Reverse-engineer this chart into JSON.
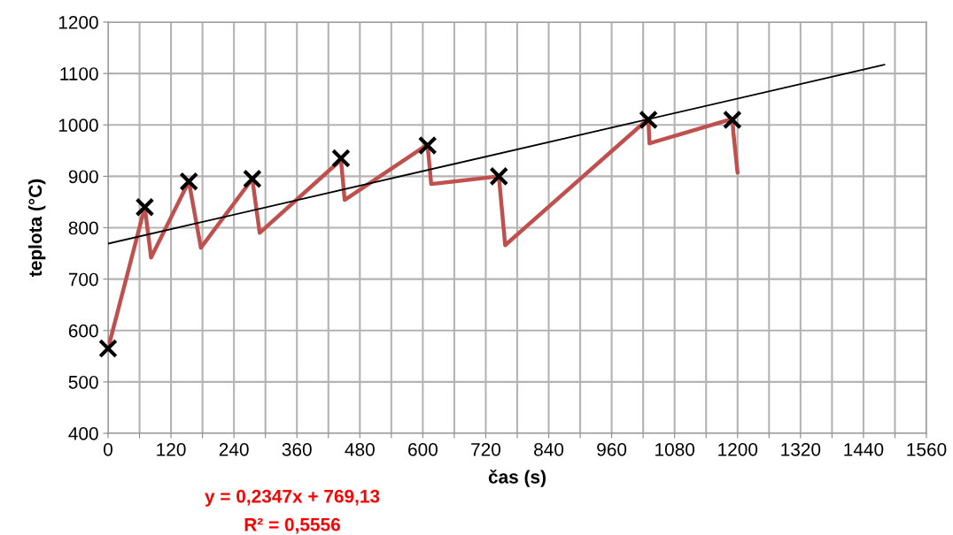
{
  "chart_data": {
    "type": "line",
    "xlabel": "čas (s)",
    "ylabel": "teplota (°C)",
    "xlim": [
      0,
      1560
    ],
    "ylim": [
      400,
      1200
    ],
    "xticks": [
      0,
      {
        "value": 60,
        "label": null
      },
      120,
      {
        "value": 180,
        "label": null
      },
      240,
      {
        "value": 300,
        "label": null
      },
      360,
      {
        "value": 420,
        "label": null
      },
      480,
      {
        "value": 540,
        "label": null
      },
      600,
      {
        "value": 660,
        "label": null
      },
      720,
      {
        "value": 780,
        "label": null
      },
      840,
      {
        "value": 900,
        "label": null
      },
      960,
      {
        "value": 1020,
        "label": null
      },
      1080,
      {
        "value": 1140,
        "label": null
      },
      1200,
      {
        "value": 1260,
        "label": null
      },
      1320,
      {
        "value": 1380,
        "label": null
      },
      1440,
      {
        "value": 1500,
        "label": null
      },
      1560
    ],
    "yticks": [
      400,
      500,
      600,
      700,
      800,
      900,
      1000,
      1100,
      1200
    ],
    "grid": true,
    "legend": false,
    "series": [
      {
        "color": "#c0504d",
        "marker": "none",
        "x": [
          0,
          70,
          82,
          154,
          177,
          275,
          289,
          444,
          451,
          609,
          616,
          745,
          750,
          757,
          1030,
          1032,
          1190,
          1192,
          1200
        ],
        "values": [
          565,
          840,
          742,
          890,
          761,
          895,
          790,
          932,
          854,
          962,
          885,
          900,
          844,
          766,
          1012,
          964,
          1012,
          985,
          907
        ]
      },
      {
        "type": "scatter",
        "color": "#000000",
        "marker": "cross",
        "x": [
          0,
          70,
          154,
          275,
          444,
          609,
          745,
          1030,
          1190
        ],
        "values": [
          565,
          840,
          890,
          895,
          935,
          960,
          900,
          1010,
          1010
        ]
      },
      {
        "color": "#000000",
        "marker": "none",
        "x": [
          0,
          1480
        ],
        "values": [
          769,
          1117
        ]
      }
    ],
    "annotations": [
      "y = 0,2347x + 769,13",
      "R² = 0,5556"
    ]
  }
}
